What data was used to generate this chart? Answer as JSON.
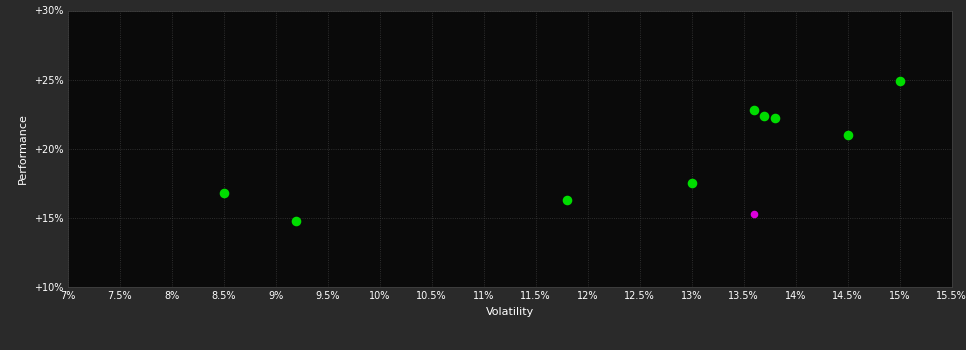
{
  "background_color": "#2a2a2a",
  "plot_bg_color": "#0a0a0a",
  "grid_color": "#3a3a3a",
  "text_color": "#ffffff",
  "xlabel": "Volatility",
  "ylabel": "Performance",
  "xlim": [
    0.07,
    0.155
  ],
  "ylim": [
    0.1,
    0.3
  ],
  "xticks": [
    0.07,
    0.075,
    0.08,
    0.085,
    0.09,
    0.095,
    0.1,
    0.105,
    0.11,
    0.115,
    0.12,
    0.125,
    0.13,
    0.135,
    0.14,
    0.145,
    0.15,
    0.155
  ],
  "xtick_labels": [
    "7%",
    "7.5%",
    "8%",
    "8.5%",
    "9%",
    "9.5%",
    "10%",
    "10.5%",
    "11%",
    "11.5%",
    "12%",
    "12.5%",
    "13%",
    "13.5%",
    "14%",
    "14.5%",
    "15%",
    "15.5%"
  ],
  "yticks": [
    0.1,
    0.15,
    0.2,
    0.25,
    0.3
  ],
  "ytick_labels": [
    "+10%",
    "+15%",
    "+20%",
    "+25%",
    "+30%"
  ],
  "points_green": [
    [
      0.085,
      0.168
    ],
    [
      0.092,
      0.148
    ],
    [
      0.118,
      0.163
    ],
    [
      0.13,
      0.175
    ],
    [
      0.136,
      0.228
    ],
    [
      0.137,
      0.224
    ],
    [
      0.138,
      0.222
    ],
    [
      0.145,
      0.21
    ],
    [
      0.15,
      0.249
    ]
  ],
  "points_magenta": [
    [
      0.136,
      0.153
    ]
  ],
  "point_color_green": "#00dd00",
  "point_color_magenta": "#dd00dd",
  "point_size_green": 35,
  "point_size_magenta": 20,
  "marker": "o",
  "xlabel_fontsize": 8,
  "ylabel_fontsize": 8,
  "tick_fontsize": 7
}
